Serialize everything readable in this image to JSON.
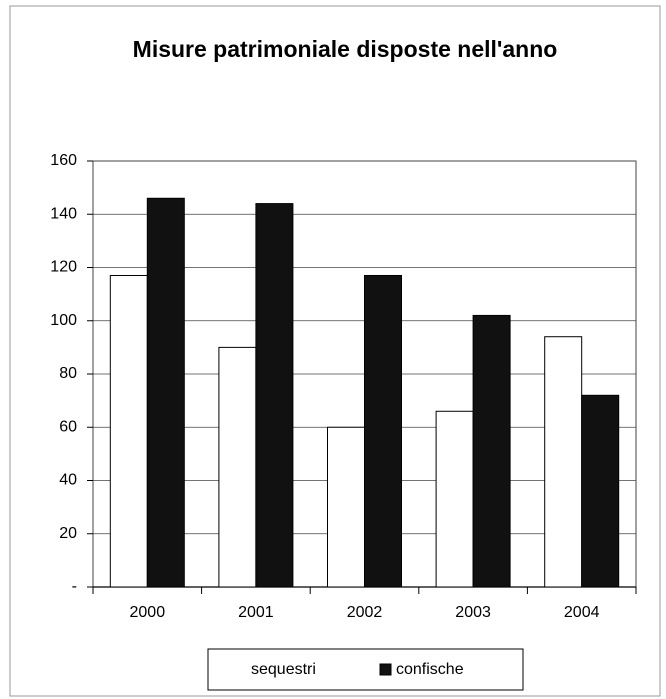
{
  "chart_data": {
    "type": "bar",
    "title": "Misure patrimoniale disposte nell'anno",
    "categories": [
      "2000",
      "2001",
      "2002",
      "2003",
      "2004"
    ],
    "series": [
      {
        "name": "sequestri",
        "color": "#ffffff",
        "values": [
          117,
          90,
          60,
          66,
          94
        ]
      },
      {
        "name": "confische",
        "color": "#111111",
        "values": [
          146,
          144,
          117,
          102,
          72
        ]
      }
    ],
    "ylim": [
      0,
      160
    ],
    "yticks": [
      {
        "value": 0,
        "label": "-"
      },
      20,
      40,
      60,
      80,
      100,
      120,
      140,
      160
    ],
    "grid": true,
    "legend": "bottom"
  }
}
